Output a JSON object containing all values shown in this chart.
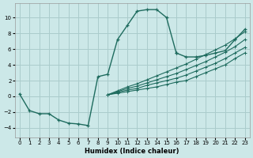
{
  "xlabel": "Humidex (Indice chaleur)",
  "background_color": "#cce8e8",
  "grid_color": "#aacccc",
  "line_color": "#1e6b5e",
  "xlim": [
    -0.5,
    23.5
  ],
  "ylim": [
    -5.2,
    11.8
  ],
  "xticks": [
    0,
    1,
    2,
    3,
    4,
    5,
    6,
    7,
    8,
    9,
    10,
    11,
    12,
    13,
    14,
    15,
    16,
    17,
    18,
    19,
    20,
    21,
    22,
    23
  ],
  "yticks": [
    -4,
    -2,
    0,
    2,
    4,
    6,
    8,
    10
  ],
  "main_x": [
    0,
    1,
    2,
    3,
    4,
    5,
    6,
    7,
    8,
    9,
    10,
    11,
    12,
    13,
    14,
    15,
    16
  ],
  "main_y": [
    0.3,
    -1.8,
    -2.2,
    -2.2,
    -3.0,
    -3.4,
    -3.5,
    -3.7,
    2.5,
    2.8,
    7.2,
    9.0,
    10.8,
    11.0,
    11.0,
    10.0,
    5.5
  ],
  "seg2_x": [
    16,
    17,
    18,
    19,
    20,
    21,
    22,
    23
  ],
  "seg2_y": [
    5.5,
    5.0,
    5.0,
    5.2,
    5.5,
    5.8,
    7.2,
    8.5
  ],
  "parallel_lines": [
    {
      "x": [
        9,
        10,
        11,
        12,
        13,
        14,
        15,
        16,
        17,
        18,
        19,
        20,
        21,
        22,
        23
      ],
      "y": [
        0.2,
        0.4,
        0.6,
        0.8,
        1.0,
        1.2,
        1.5,
        1.8,
        2.0,
        2.5,
        3.0,
        3.5,
        4.0,
        4.8,
        5.5
      ]
    },
    {
      "x": [
        9,
        10,
        11,
        12,
        13,
        14,
        15,
        16,
        17,
        18,
        19,
        20,
        21,
        22,
        23
      ],
      "y": [
        0.2,
        0.5,
        0.8,
        1.0,
        1.4,
        1.7,
        2.0,
        2.3,
        2.7,
        3.2,
        3.7,
        4.2,
        4.8,
        5.5,
        6.2
      ]
    },
    {
      "x": [
        9,
        10,
        11,
        12,
        13,
        14,
        15,
        16,
        17,
        18,
        19,
        20,
        21,
        22,
        23
      ],
      "y": [
        0.2,
        0.6,
        1.0,
        1.3,
        1.7,
        2.1,
        2.5,
        2.9,
        3.4,
        3.9,
        4.4,
        5.0,
        5.6,
        6.3,
        7.2
      ]
    },
    {
      "x": [
        9,
        10,
        11,
        12,
        13,
        14,
        15,
        16,
        17,
        18,
        19,
        20,
        21,
        22,
        23
      ],
      "y": [
        0.2,
        0.7,
        1.2,
        1.6,
        2.1,
        2.6,
        3.1,
        3.6,
        4.1,
        4.7,
        5.3,
        5.9,
        6.5,
        7.3,
        8.2
      ]
    }
  ]
}
